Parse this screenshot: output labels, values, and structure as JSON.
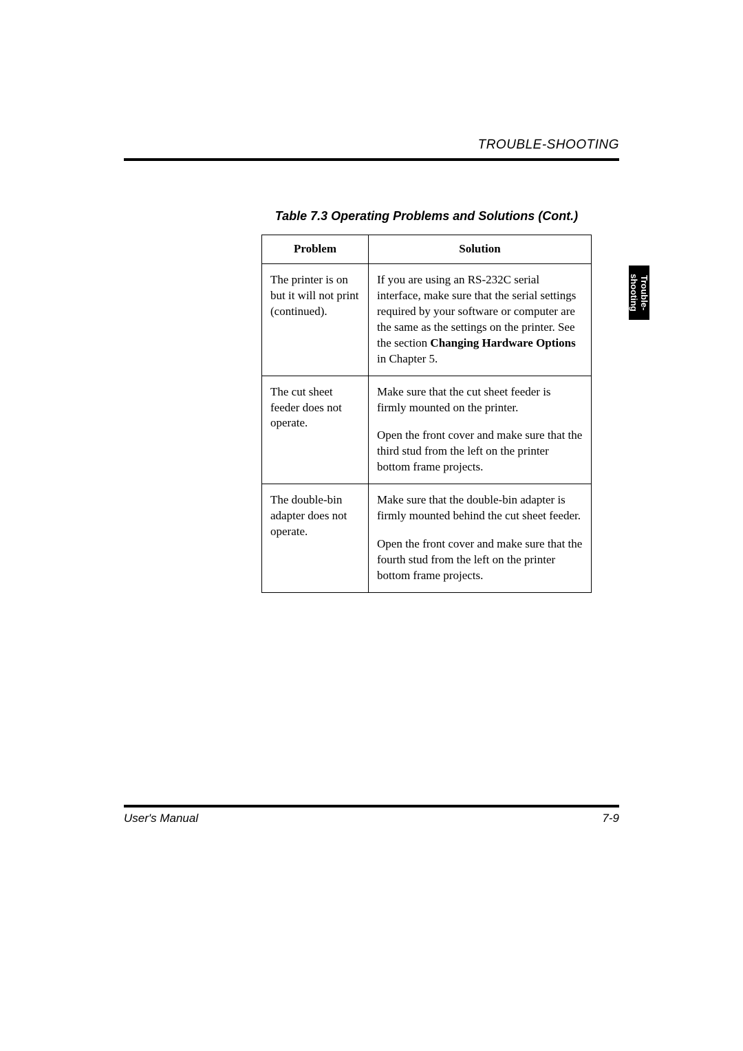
{
  "header": {
    "section_title": "TROUBLE-SHOOTING"
  },
  "tab": {
    "line1": "Trouble-",
    "line2": "shooting"
  },
  "table": {
    "caption": "Table 7.3  Operating Problems and Solutions (Cont.)",
    "columns": {
      "problem": "Problem",
      "solution": "Solution"
    },
    "rows": [
      {
        "problem": "The printer is on but it will not print (continued).",
        "solution_pre": "If you are using an RS-232C serial interface, make sure that the serial settings required by your software or computer are the same as the settings on the printer.  See the section ",
        "solution_bold": "Changing Hardware Options",
        "solution_post": " in Chapter 5."
      },
      {
        "problem": "The cut sheet feeder does not operate.",
        "solution_para1": "Make sure that the cut sheet feeder is firmly mounted on the printer.",
        "solution_para2": "Open the front cover and make sure that the third stud from the left on the printer bottom frame projects."
      },
      {
        "problem": "The double-bin adapter does not operate.",
        "solution_para1": "Make sure that the double-bin adapter is firmly mounted behind the cut sheet feeder.",
        "solution_para2": "Open the front cover and make sure that the fourth stud from the left on the printer bottom frame projects."
      }
    ]
  },
  "footer": {
    "left": "User's Manual",
    "right": "7-9"
  }
}
